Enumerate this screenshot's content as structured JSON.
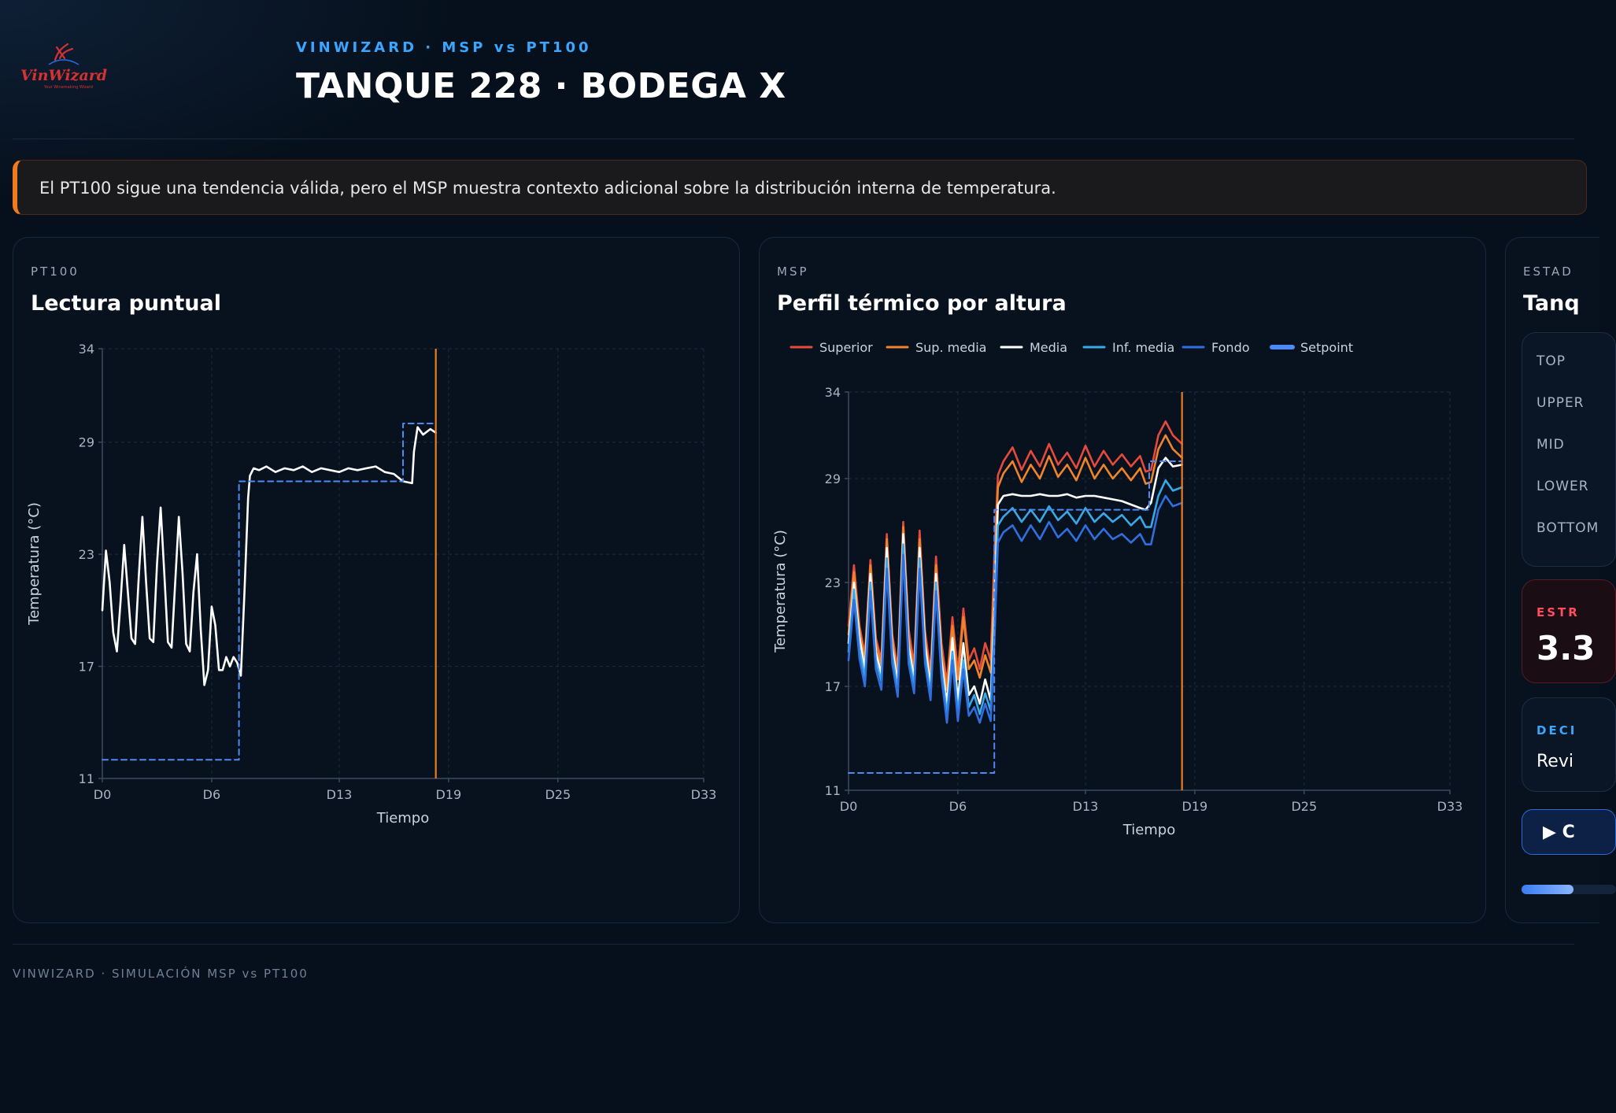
{
  "header": {
    "logo_text": "VinWizard",
    "logo_tagline": "Your Winemaking Wizard",
    "eyebrow": "VINWIZARD · MSP vs PT100",
    "title": "TANQUE 228 · BODEGA X"
  },
  "banner": {
    "text": "El PT100 sigue una tendencia válida, pero el MSP muestra contexto adicional sobre la distribución interna de temperatura."
  },
  "colors": {
    "superior": "#e64a3c",
    "sup_media": "#f0842a",
    "media": "#ffffff",
    "inf_media": "#37a9e8",
    "fondo": "#2f6fe0",
    "setpoint": "#4a8bf5",
    "marker": "#f07a1e"
  },
  "pt100_panel": {
    "eyebrow": "PT100",
    "title": "Lectura puntual",
    "chart_data": {
      "type": "line",
      "xlabel": "Tiempo",
      "ylabel": "Temperatura (°C)",
      "x_ticks": [
        "D0",
        "D6",
        "D13",
        "D19",
        "D25",
        "D33"
      ],
      "x_tick_values": [
        0,
        6,
        13,
        19,
        25,
        33
      ],
      "y_ticks": [
        11,
        17,
        23,
        29,
        34
      ],
      "xlim": [
        0,
        33
      ],
      "ylim": [
        11,
        34
      ],
      "grid": true,
      "current_day": 18.3,
      "series": [
        {
          "name": "PT100",
          "x": [
            0,
            0.2,
            0.4,
            0.6,
            0.8,
            1.0,
            1.2,
            1.4,
            1.6,
            1.8,
            2.0,
            2.2,
            2.4,
            2.6,
            2.8,
            3.0,
            3.2,
            3.4,
            3.6,
            3.8,
            4.0,
            4.2,
            4.4,
            4.6,
            4.8,
            5.0,
            5.2,
            5.4,
            5.6,
            5.8,
            6.0,
            6.2,
            6.4,
            6.6,
            6.8,
            7.0,
            7.2,
            7.4,
            7.6,
            7.8,
            8.0,
            8.1,
            8.3,
            8.6,
            9,
            9.5,
            10,
            10.5,
            11,
            11.5,
            12,
            12.5,
            13,
            13.5,
            14,
            14.5,
            15,
            15.5,
            16,
            16.5,
            17,
            17.1,
            17.3,
            17.6,
            18,
            18.3
          ],
          "values": [
            20.0,
            23.2,
            21.5,
            18.8,
            17.8,
            20.5,
            23.5,
            21.0,
            18.5,
            18.2,
            21.8,
            25.0,
            21.5,
            18.5,
            18.3,
            22.5,
            25.5,
            22.0,
            18.3,
            18.0,
            21.5,
            25.0,
            22.0,
            18.2,
            17.8,
            21.0,
            23.0,
            19.0,
            16.0,
            16.8,
            20.2,
            19.2,
            16.8,
            16.8,
            17.5,
            17.0,
            17.5,
            17.2,
            16.5,
            21.0,
            26.0,
            27.2,
            27.6,
            27.5,
            27.7,
            27.4,
            27.6,
            27.5,
            27.7,
            27.4,
            27.6,
            27.5,
            27.4,
            27.6,
            27.5,
            27.6,
            27.7,
            27.4,
            27.3,
            26.9,
            26.8,
            28.5,
            29.8,
            29.4,
            29.7,
            29.5
          ]
        },
        {
          "name": "Setpoint",
          "x": [
            0,
            7.5,
            7.5,
            8.3,
            8.3,
            16.5,
            16.5,
            18.3
          ],
          "values": [
            12.0,
            12.0,
            26.9,
            26.9,
            26.9,
            26.9,
            30.0,
            30.0
          ]
        }
      ]
    }
  },
  "msp_panel": {
    "eyebrow": "MSP",
    "title": "Perfil térmico por altura",
    "chart_data": {
      "type": "line",
      "xlabel": "Tiempo",
      "ylabel": "Temperatura (°C)",
      "x_ticks": [
        "D0",
        "D6",
        "D13",
        "D19",
        "D25",
        "D33"
      ],
      "x_tick_values": [
        0,
        6,
        13,
        19,
        25,
        33
      ],
      "y_ticks": [
        11,
        17,
        23,
        29,
        34
      ],
      "xlim": [
        0,
        33
      ],
      "ylim": [
        11,
        34
      ],
      "grid": true,
      "legend_position": "top-left",
      "current_day": 18.3,
      "x": [
        0,
        0.3,
        0.6,
        0.9,
        1.2,
        1.5,
        1.8,
        2.1,
        2.4,
        2.7,
        3.0,
        3.3,
        3.6,
        3.9,
        4.2,
        4.5,
        4.8,
        5.1,
        5.4,
        5.7,
        6.0,
        6.3,
        6.6,
        6.9,
        7.2,
        7.5,
        7.8,
        8.0,
        8.2,
        8.5,
        9,
        9.5,
        10,
        10.5,
        11,
        11.5,
        12,
        12.5,
        13,
        13.5,
        14,
        14.5,
        15,
        15.5,
        16,
        16.3,
        16.6,
        17,
        17.4,
        17.8,
        18.3
      ],
      "series": [
        {
          "name": "Superior",
          "values": [
            20.5,
            24.0,
            20.5,
            18.8,
            24.3,
            19.8,
            18.5,
            25.8,
            20.0,
            18.0,
            26.5,
            20.3,
            18.2,
            26.0,
            20.2,
            17.8,
            24.5,
            19.5,
            17.2,
            21.0,
            17.8,
            21.5,
            18.5,
            19.2,
            18.0,
            19.5,
            18.5,
            24.5,
            29.2,
            30.0,
            30.8,
            29.5,
            30.6,
            29.7,
            31.0,
            29.8,
            30.5,
            29.6,
            30.9,
            29.7,
            30.6,
            29.8,
            30.4,
            29.7,
            30.3,
            29.4,
            29.5,
            31.5,
            32.3,
            31.5,
            31.0
          ]
        },
        {
          "name": "Sup. media",
          "values": [
            20.0,
            23.6,
            20.2,
            18.5,
            24.0,
            19.5,
            18.2,
            25.5,
            19.7,
            17.6,
            26.2,
            19.8,
            17.8,
            25.5,
            19.8,
            17.4,
            24.0,
            19.0,
            16.8,
            20.5,
            17.4,
            21.0,
            18.0,
            18.5,
            17.5,
            18.8,
            17.8,
            23.5,
            28.5,
            29.3,
            30.0,
            28.8,
            29.8,
            29.0,
            30.3,
            29.1,
            29.8,
            28.9,
            30.2,
            29.0,
            29.8,
            29.0,
            29.6,
            28.9,
            29.6,
            28.7,
            28.8,
            30.7,
            31.5,
            30.7,
            30.2
          ]
        },
        {
          "name": "Media",
          "values": [
            19.5,
            23.0,
            19.8,
            18.0,
            23.5,
            19.0,
            17.7,
            25.0,
            19.2,
            17.2,
            25.8,
            19.3,
            17.4,
            25.0,
            19.4,
            17.0,
            23.5,
            18.5,
            16.0,
            19.8,
            16.2,
            19.5,
            16.5,
            17.0,
            16.0,
            17.4,
            16.2,
            21.5,
            27.5,
            28.0,
            28.1,
            28.0,
            28.0,
            28.1,
            28.0,
            28.0,
            28.1,
            27.9,
            28.0,
            28.0,
            27.9,
            27.8,
            27.7,
            27.5,
            27.3,
            27.2,
            27.6,
            29.6,
            30.2,
            29.7,
            29.8
          ]
        },
        {
          "name": "Inf. media",
          "values": [
            19.0,
            22.6,
            19.2,
            17.5,
            23.0,
            18.5,
            17.3,
            24.4,
            18.8,
            16.8,
            25.2,
            18.8,
            17.0,
            24.4,
            18.8,
            16.6,
            23.0,
            18.0,
            15.4,
            19.0,
            15.5,
            18.5,
            15.8,
            16.5,
            15.4,
            16.6,
            15.6,
            20.5,
            26.3,
            26.8,
            27.3,
            26.5,
            27.2,
            26.5,
            27.4,
            26.6,
            27.1,
            26.4,
            27.3,
            26.5,
            27.0,
            26.5,
            26.9,
            26.3,
            26.8,
            26.2,
            26.2,
            28.0,
            28.9,
            28.3,
            28.5
          ]
        },
        {
          "name": "Fondo",
          "values": [
            18.5,
            22.0,
            18.6,
            17.0,
            22.5,
            18.0,
            16.8,
            23.8,
            18.3,
            16.4,
            24.6,
            18.3,
            16.6,
            23.8,
            18.3,
            16.2,
            22.5,
            17.5,
            14.9,
            18.5,
            15.0,
            18.0,
            15.3,
            15.8,
            14.9,
            16.0,
            15.0,
            19.5,
            25.3,
            25.9,
            26.3,
            25.4,
            26.3,
            25.5,
            26.5,
            25.6,
            26.1,
            25.4,
            26.3,
            25.5,
            26.1,
            25.5,
            25.8,
            25.3,
            25.8,
            25.2,
            25.2,
            27.2,
            28.0,
            27.4,
            27.6
          ]
        },
        {
          "name": "Setpoint",
          "x": [
            0,
            8.0,
            8.0,
            16.5,
            16.5,
            18.3
          ],
          "values": [
            12.0,
            12.0,
            27.2,
            27.2,
            30.0,
            30.0
          ]
        }
      ]
    }
  },
  "status_panel": {
    "eyebrow": "ESTAD",
    "title": "Tanq",
    "zones": [
      "TOP",
      "UPPER",
      "MID",
      "LOWER",
      "BOTTOM"
    ],
    "stratification_label": "ESTR",
    "stratification_value": "3.3",
    "decision_label": "DECI",
    "decision_value": "Revi",
    "play_label": "▶ C",
    "progress": 0.55
  },
  "footer": {
    "text": "VINWIZARD · SIMULACIÓN MSP vs PT100"
  }
}
